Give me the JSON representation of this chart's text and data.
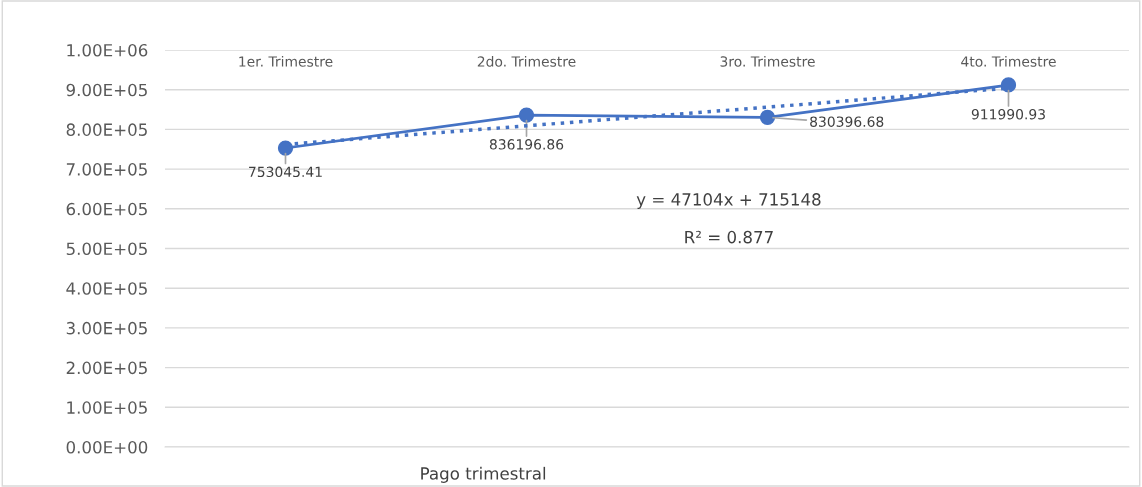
{
  "chart_data": {
    "type": "line",
    "xlabel": "Pago trimestral",
    "categories": [
      "1er. Trimestre",
      "2do. Trimestre",
      "3ro. Trimestre",
      "4to. Trimestre"
    ],
    "series": [
      {
        "color": "#4472c4",
        "values": [
          753045.41,
          836196.86,
          830396.68,
          911990.93
        ],
        "value_labels": [
          "753045.41",
          "836196.86",
          "830396.68",
          "911990.93"
        ],
        "marker": "circle",
        "line_style": "solid"
      },
      {
        "type": "line",
        "color": "#4472c4",
        "x": [
          "1er. Trimestre",
          "2do. Trimestre",
          "3ro. Trimestre",
          "4to. Trimestre"
        ],
        "values": [
          762000,
          809000,
          856000,
          904000
        ],
        "marker": "none",
        "line_style": "dotted"
      }
    ],
    "ylim": [
      0,
      1000000
    ],
    "yticks": [
      {
        "value": 0,
        "label": "0.00E+00"
      },
      {
        "value": 100000,
        "label": "1.00E+05"
      },
      {
        "value": 200000,
        "label": "2.00E+05"
      },
      {
        "value": 300000,
        "label": "3.00E+05"
      },
      {
        "value": 400000,
        "label": "4.00E+05"
      },
      {
        "value": 500000,
        "label": "5.00E+05"
      },
      {
        "value": 600000,
        "label": "6.00E+05"
      },
      {
        "value": 700000,
        "label": "7.00E+05"
      },
      {
        "value": 800000,
        "label": "8.00E+05"
      },
      {
        "value": 900000,
        "label": "9.00E+05"
      },
      {
        "value": 1000000,
        "label": "1.00E+06"
      }
    ],
    "grid": "y",
    "legend": false,
    "annotations": [
      "y = 47104x + 715148",
      "R² = 0.877"
    ]
  }
}
